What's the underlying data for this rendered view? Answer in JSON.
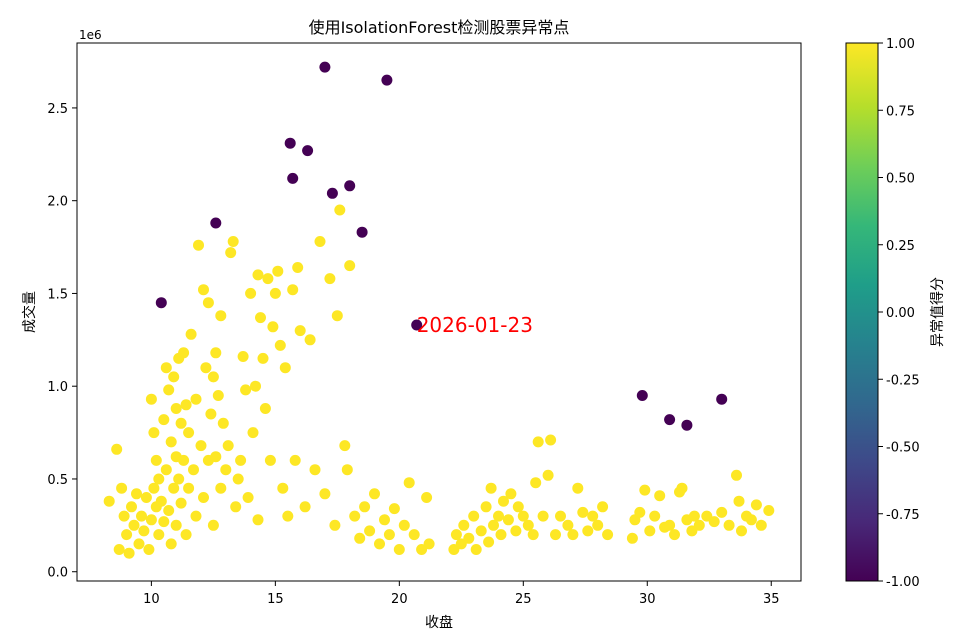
{
  "chart_data": {
    "type": "scatter",
    "title": "使用IsolationForest检测股票异常点",
    "xlabel": "收盘",
    "ylabel": "成交量",
    "y_offset_text": "1e6",
    "xlim": [
      7.0,
      36.2
    ],
    "ylim": [
      -0.05,
      2.85
    ],
    "x_ticks": [
      10,
      15,
      20,
      25,
      30,
      35
    ],
    "y_ticks": [
      0.0,
      0.5,
      1.0,
      1.5,
      2.0,
      2.5
    ],
    "x_tick_labels": [
      "10",
      "15",
      "20",
      "25",
      "30",
      "35"
    ],
    "y_tick_labels": [
      "0.0",
      "0.5",
      "1.0",
      "1.5",
      "2.0",
      "2.5"
    ],
    "colorbar": {
      "label": "异常值得分",
      "range": [
        -1,
        1
      ],
      "ticks": [
        -1.0,
        -0.75,
        -0.5,
        -0.25,
        0.0,
        0.25,
        0.5,
        0.75,
        1.0
      ],
      "tick_labels": [
        "-1.00",
        "-0.75",
        "-0.50",
        "-0.25",
        "0.00",
        "0.25",
        "0.50",
        "0.75",
        "1.00"
      ],
      "colors": [
        "#440154",
        "#482878",
        "#3e4989",
        "#31688e",
        "#26828e",
        "#1f9e89",
        "#35b779",
        "#6ece58",
        "#b5de2b",
        "#fde725"
      ]
    },
    "annotation": {
      "text": "2026-01-23",
      "x": 20.7,
      "y": 1.33,
      "color": "#ff0000"
    },
    "series": [
      {
        "score": -1,
        "color": "#440154",
        "points": [
          [
            10.4,
            1.45
          ],
          [
            12.6,
            1.88
          ],
          [
            15.6,
            2.31
          ],
          [
            15.7,
            2.12
          ],
          [
            16.3,
            2.27
          ],
          [
            17.0,
            2.72
          ],
          [
            17.3,
            2.04
          ],
          [
            18.0,
            2.08
          ],
          [
            18.5,
            1.83
          ],
          [
            19.5,
            2.65
          ],
          [
            20.7,
            1.33
          ],
          [
            29.8,
            0.95
          ],
          [
            30.9,
            0.82
          ],
          [
            31.6,
            0.79
          ],
          [
            33.0,
            0.93
          ]
        ]
      },
      {
        "score": 1,
        "color": "#fde725",
        "points": [
          [
            8.3,
            0.38
          ],
          [
            8.6,
            0.66
          ],
          [
            8.7,
            0.12
          ],
          [
            8.8,
            0.45
          ],
          [
            8.9,
            0.3
          ],
          [
            9.0,
            0.2
          ],
          [
            9.1,
            0.1
          ],
          [
            9.2,
            0.35
          ],
          [
            9.3,
            0.25
          ],
          [
            9.4,
            0.42
          ],
          [
            9.5,
            0.15
          ],
          [
            9.6,
            0.3
          ],
          [
            9.7,
            0.22
          ],
          [
            9.8,
            0.4
          ],
          [
            9.9,
            0.12
          ],
          [
            10.0,
            0.93
          ],
          [
            10.0,
            0.28
          ],
          [
            10.1,
            0.75
          ],
          [
            10.1,
            0.45
          ],
          [
            10.2,
            0.35
          ],
          [
            10.2,
            0.6
          ],
          [
            10.3,
            0.2
          ],
          [
            10.3,
            0.5
          ],
          [
            10.4,
            0.38
          ],
          [
            10.5,
            0.82
          ],
          [
            10.5,
            0.27
          ],
          [
            10.6,
            1.1
          ],
          [
            10.6,
            0.55
          ],
          [
            10.7,
            0.98
          ],
          [
            10.7,
            0.33
          ],
          [
            10.8,
            0.7
          ],
          [
            10.8,
            0.15
          ],
          [
            10.9,
            1.05
          ],
          [
            10.9,
            0.45
          ],
          [
            11.0,
            0.88
          ],
          [
            11.0,
            0.62
          ],
          [
            11.0,
            0.25
          ],
          [
            11.1,
            1.15
          ],
          [
            11.1,
            0.5
          ],
          [
            11.2,
            0.8
          ],
          [
            11.2,
            0.37
          ],
          [
            11.3,
            1.18
          ],
          [
            11.3,
            0.6
          ],
          [
            11.4,
            0.9
          ],
          [
            11.4,
            0.2
          ],
          [
            11.5,
            0.75
          ],
          [
            11.5,
            0.45
          ],
          [
            11.6,
            1.28
          ],
          [
            11.7,
            0.55
          ],
          [
            11.8,
            0.93
          ],
          [
            11.8,
            0.3
          ],
          [
            11.9,
            1.76
          ],
          [
            12.0,
            0.68
          ],
          [
            12.1,
            1.52
          ],
          [
            12.1,
            0.4
          ],
          [
            12.2,
            1.1
          ],
          [
            12.3,
            1.45
          ],
          [
            12.3,
            0.6
          ],
          [
            12.4,
            0.85
          ],
          [
            12.5,
            1.05
          ],
          [
            12.5,
            0.25
          ],
          [
            12.6,
            1.18
          ],
          [
            12.6,
            0.62
          ],
          [
            12.7,
            0.95
          ],
          [
            12.8,
            1.38
          ],
          [
            12.8,
            0.45
          ],
          [
            12.9,
            0.8
          ],
          [
            13.0,
            0.55
          ],
          [
            13.1,
            0.68
          ],
          [
            13.2,
            1.72
          ],
          [
            13.3,
            1.78
          ],
          [
            13.4,
            0.35
          ],
          [
            13.5,
            0.5
          ],
          [
            13.6,
            0.6
          ],
          [
            13.7,
            1.16
          ],
          [
            13.8,
            0.98
          ],
          [
            13.9,
            0.4
          ],
          [
            14.0,
            1.5
          ],
          [
            14.1,
            0.75
          ],
          [
            14.2,
            1.0
          ],
          [
            14.3,
            1.6
          ],
          [
            14.3,
            0.28
          ],
          [
            14.4,
            1.37
          ],
          [
            14.5,
            1.15
          ],
          [
            14.6,
            0.88
          ],
          [
            14.7,
            1.58
          ],
          [
            14.8,
            0.6
          ],
          [
            14.9,
            1.32
          ],
          [
            15.0,
            1.5
          ],
          [
            15.1,
            1.62
          ],
          [
            15.2,
            1.22
          ],
          [
            15.3,
            0.45
          ],
          [
            15.4,
            1.1
          ],
          [
            15.5,
            0.3
          ],
          [
            15.7,
            1.52
          ],
          [
            15.8,
            0.6
          ],
          [
            15.9,
            1.64
          ],
          [
            16.0,
            1.3
          ],
          [
            16.2,
            0.35
          ],
          [
            16.4,
            1.25
          ],
          [
            16.6,
            0.55
          ],
          [
            16.8,
            1.78
          ],
          [
            17.0,
            0.42
          ],
          [
            17.2,
            1.58
          ],
          [
            17.4,
            0.25
          ],
          [
            17.5,
            1.38
          ],
          [
            17.6,
            1.95
          ],
          [
            17.8,
            0.68
          ],
          [
            17.9,
            0.55
          ],
          [
            18.0,
            1.65
          ],
          [
            18.2,
            0.3
          ],
          [
            18.4,
            0.18
          ],
          [
            18.6,
            0.35
          ],
          [
            18.8,
            0.22
          ],
          [
            19.0,
            0.42
          ],
          [
            19.2,
            0.15
          ],
          [
            19.4,
            0.28
          ],
          [
            19.6,
            0.2
          ],
          [
            19.8,
            0.34
          ],
          [
            20.0,
            0.12
          ],
          [
            20.2,
            0.25
          ],
          [
            20.4,
            0.48
          ],
          [
            20.6,
            0.2
          ],
          [
            20.9,
            0.12
          ],
          [
            21.1,
            0.4
          ],
          [
            21.2,
            0.15
          ],
          [
            22.2,
            0.12
          ],
          [
            22.3,
            0.2
          ],
          [
            22.5,
            0.15
          ],
          [
            22.6,
            0.25
          ],
          [
            22.8,
            0.18
          ],
          [
            23.0,
            0.3
          ],
          [
            23.1,
            0.12
          ],
          [
            23.3,
            0.22
          ],
          [
            23.5,
            0.35
          ],
          [
            23.6,
            0.16
          ],
          [
            23.7,
            0.45
          ],
          [
            23.8,
            0.25
          ],
          [
            24.0,
            0.3
          ],
          [
            24.1,
            0.2
          ],
          [
            24.2,
            0.38
          ],
          [
            24.4,
            0.28
          ],
          [
            24.5,
            0.42
          ],
          [
            24.7,
            0.22
          ],
          [
            24.8,
            0.35
          ],
          [
            25.0,
            0.3
          ],
          [
            25.2,
            0.25
          ],
          [
            25.4,
            0.2
          ],
          [
            25.5,
            0.48
          ],
          [
            25.6,
            0.7
          ],
          [
            25.8,
            0.3
          ],
          [
            26.0,
            0.52
          ],
          [
            26.1,
            0.71
          ],
          [
            26.3,
            0.2
          ],
          [
            26.5,
            0.3
          ],
          [
            26.8,
            0.25
          ],
          [
            27.0,
            0.2
          ],
          [
            27.2,
            0.45
          ],
          [
            27.4,
            0.32
          ],
          [
            27.6,
            0.22
          ],
          [
            27.8,
            0.3
          ],
          [
            28.0,
            0.25
          ],
          [
            28.2,
            0.35
          ],
          [
            28.4,
            0.2
          ],
          [
            29.4,
            0.18
          ],
          [
            29.5,
            0.28
          ],
          [
            29.7,
            0.32
          ],
          [
            29.9,
            0.44
          ],
          [
            30.1,
            0.22
          ],
          [
            30.3,
            0.3
          ],
          [
            30.5,
            0.41
          ],
          [
            30.7,
            0.24
          ],
          [
            30.9,
            0.25
          ],
          [
            31.1,
            0.2
          ],
          [
            31.3,
            0.43
          ],
          [
            31.4,
            0.45
          ],
          [
            31.6,
            0.28
          ],
          [
            31.8,
            0.22
          ],
          [
            31.9,
            0.3
          ],
          [
            32.1,
            0.25
          ],
          [
            32.4,
            0.3
          ],
          [
            32.7,
            0.27
          ],
          [
            33.0,
            0.32
          ],
          [
            33.3,
            0.25
          ],
          [
            33.6,
            0.52
          ],
          [
            33.7,
            0.38
          ],
          [
            33.8,
            0.22
          ],
          [
            34.0,
            0.3
          ],
          [
            34.2,
            0.28
          ],
          [
            34.4,
            0.36
          ],
          [
            34.6,
            0.25
          ],
          [
            34.9,
            0.33
          ]
        ]
      }
    ]
  }
}
